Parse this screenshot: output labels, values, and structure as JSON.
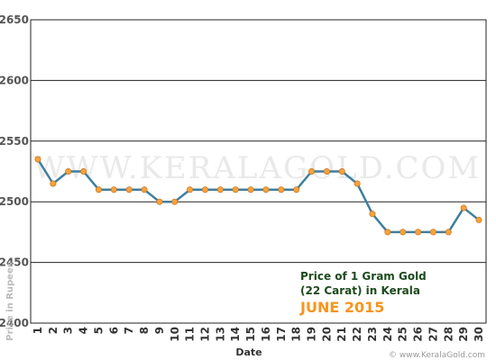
{
  "chart_data": {
    "type": "line",
    "title": "",
    "xlabel": "Date",
    "ylabel": "Price in Rupees",
    "ylim": [
      2400,
      2650
    ],
    "yticks": [
      2400,
      2450,
      2500,
      2550,
      2600,
      2650
    ],
    "x": [
      1,
      2,
      3,
      4,
      5,
      6,
      7,
      8,
      9,
      10,
      11,
      12,
      13,
      14,
      15,
      16,
      17,
      18,
      19,
      20,
      21,
      22,
      23,
      24,
      25,
      26,
      27,
      28,
      29,
      30
    ],
    "series": [
      {
        "values": [
          2535,
          2515,
          2525,
          2525,
          2510,
          2510,
          2510,
          2510,
          2500,
          2500,
          2510,
          2510,
          2510,
          2510,
          2510,
          2510,
          2510,
          2510,
          2525,
          2525,
          2525,
          2515,
          2490,
          2475,
          2475,
          2475,
          2475,
          2475,
          2495,
          2485
        ],
        "color": "#3f7f9f",
        "marker_color": "#f7a23c"
      }
    ],
    "grid": true,
    "annotation": {
      "line1": "Price of 1 Gram Gold",
      "line2": "(22 Carat) in Kerala",
      "line3": "JUNE 2015"
    },
    "watermark": "WWW.KERALAGOLD.COM",
    "credit": "© www.KeralaGold.com"
  }
}
